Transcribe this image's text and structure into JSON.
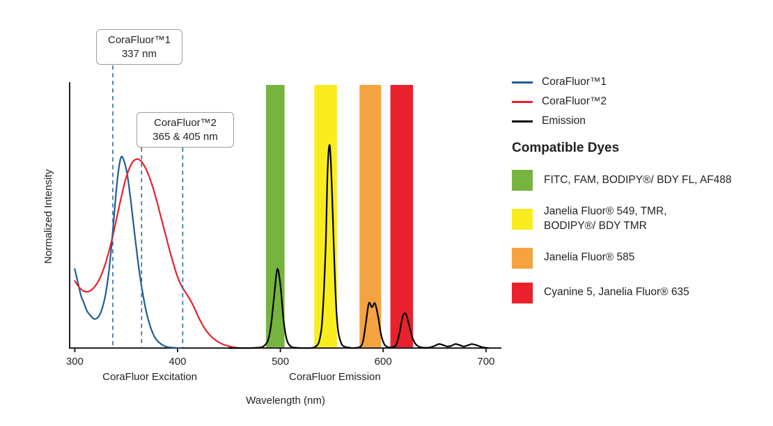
{
  "chart_data": {
    "type": "line",
    "title": "",
    "xlabel": "Wavelength (nm)",
    "ylabel": "Normalized Intensity",
    "xlim": [
      295,
      715
    ],
    "ylim": [
      0,
      1
    ],
    "x_ticks": [
      300,
      400,
      500,
      600,
      700
    ],
    "grid": false,
    "legend_position": "right",
    "axis_color": "#231f20",
    "dash_color": "#2f6ba0",
    "axis_group_labels": [
      {
        "label": "CoraFluor Excitation",
        "center_nm": 373
      },
      {
        "label": "CoraFluor Emission",
        "center_nm": 553
      }
    ],
    "dashed_markers": [
      {
        "nm": 337,
        "series": "CoraFluor™1"
      },
      {
        "nm": 365,
        "series": "CoraFluor™2"
      },
      {
        "nm": 405,
        "series": "CoraFluor™2"
      }
    ],
    "bands": [
      {
        "name": "green-filter",
        "color": "#77b43f",
        "from_nm": 486,
        "to_nm": 504
      },
      {
        "name": "yellow-filter",
        "color": "#f9ed1f",
        "from_nm": 533,
        "to_nm": 555
      },
      {
        "name": "orange-filter",
        "color": "#f5a341",
        "from_nm": 577,
        "to_nm": 598
      },
      {
        "name": "red-filter",
        "color": "#e8212c",
        "from_nm": 607,
        "to_nm": 629
      }
    ],
    "series": [
      {
        "name": "CoraFluor™1",
        "color": "#215a94",
        "points": [
          [
            300,
            0.3
          ],
          [
            303,
            0.25
          ],
          [
            306,
            0.2
          ],
          [
            309,
            0.17
          ],
          [
            312,
            0.14
          ],
          [
            315,
            0.125
          ],
          [
            318,
            0.112
          ],
          [
            321,
            0.112
          ],
          [
            324,
            0.125
          ],
          [
            327,
            0.155
          ],
          [
            330,
            0.205
          ],
          [
            333,
            0.285
          ],
          [
            336,
            0.4
          ],
          [
            339,
            0.54
          ],
          [
            342,
            0.66
          ],
          [
            345,
            0.725
          ],
          [
            348,
            0.71
          ],
          [
            351,
            0.66
          ],
          [
            354,
            0.575
          ],
          [
            357,
            0.475
          ],
          [
            360,
            0.375
          ],
          [
            363,
            0.285
          ],
          [
            366,
            0.21
          ],
          [
            369,
            0.148
          ],
          [
            372,
            0.1
          ],
          [
            375,
            0.065
          ],
          [
            378,
            0.04
          ],
          [
            381,
            0.025
          ],
          [
            384,
            0.015
          ],
          [
            387,
            0.008
          ],
          [
            390,
            0.004
          ],
          [
            394,
            0.002
          ],
          [
            398,
            0.001
          ],
          [
            402,
            0
          ]
        ]
      },
      {
        "name": "CoraFluor™2",
        "color": "#e8212c",
        "points": [
          [
            300,
            0.255
          ],
          [
            304,
            0.232
          ],
          [
            308,
            0.218
          ],
          [
            312,
            0.214
          ],
          [
            316,
            0.22
          ],
          [
            320,
            0.236
          ],
          [
            324,
            0.262
          ],
          [
            328,
            0.3
          ],
          [
            332,
            0.35
          ],
          [
            336,
            0.41
          ],
          [
            340,
            0.48
          ],
          [
            344,
            0.552
          ],
          [
            348,
            0.62
          ],
          [
            352,
            0.672
          ],
          [
            356,
            0.705
          ],
          [
            360,
            0.718
          ],
          [
            364,
            0.712
          ],
          [
            368,
            0.69
          ],
          [
            372,
            0.655
          ],
          [
            376,
            0.61
          ],
          [
            380,
            0.555
          ],
          [
            384,
            0.495
          ],
          [
            388,
            0.435
          ],
          [
            392,
            0.375
          ],
          [
            396,
            0.32
          ],
          [
            400,
            0.27
          ],
          [
            404,
            0.235
          ],
          [
            408,
            0.21
          ],
          [
            412,
            0.185
          ],
          [
            416,
            0.155
          ],
          [
            420,
            0.12
          ],
          [
            424,
            0.09
          ],
          [
            428,
            0.065
          ],
          [
            432,
            0.047
          ],
          [
            436,
            0.033
          ],
          [
            440,
            0.022
          ],
          [
            445,
            0.013
          ],
          [
            450,
            0.007
          ],
          [
            455,
            0.003
          ],
          [
            460,
            0
          ]
        ]
      },
      {
        "name": "Emission",
        "color": "#000000",
        "points": [
          [
            450,
            0
          ],
          [
            460,
            0
          ],
          [
            470,
            0
          ],
          [
            480,
            0.002
          ],
          [
            484,
            0.008
          ],
          [
            488,
            0.03
          ],
          [
            491,
            0.09
          ],
          [
            494,
            0.2
          ],
          [
            497,
            0.3
          ],
          [
            500,
            0.24
          ],
          [
            503,
            0.11
          ],
          [
            506,
            0.035
          ],
          [
            509,
            0.01
          ],
          [
            512,
            0.003
          ],
          [
            516,
            0.001
          ],
          [
            520,
            0
          ],
          [
            528,
            0
          ],
          [
            534,
            0.005
          ],
          [
            538,
            0.03
          ],
          [
            541,
            0.12
          ],
          [
            544,
            0.38
          ],
          [
            546,
            0.68
          ],
          [
            548,
            0.77
          ],
          [
            550,
            0.62
          ],
          [
            552,
            0.38
          ],
          [
            554,
            0.18
          ],
          [
            556,
            0.07
          ],
          [
            559,
            0.02
          ],
          [
            562,
            0.006
          ],
          [
            566,
            0.002
          ],
          [
            570,
            0
          ],
          [
            576,
            0.002
          ],
          [
            580,
            0.02
          ],
          [
            583,
            0.09
          ],
          [
            586,
            0.17
          ],
          [
            589,
            0.155
          ],
          [
            592,
            0.17
          ],
          [
            595,
            0.12
          ],
          [
            598,
            0.05
          ],
          [
            601,
            0.015
          ],
          [
            604,
            0.004
          ],
          [
            607,
            0.002
          ],
          [
            610,
            0.004
          ],
          [
            613,
            0.015
          ],
          [
            616,
            0.06
          ],
          [
            619,
            0.12
          ],
          [
            622,
            0.13
          ],
          [
            625,
            0.09
          ],
          [
            628,
            0.045
          ],
          [
            631,
            0.018
          ],
          [
            634,
            0.007
          ],
          [
            638,
            0.002
          ],
          [
            642,
            0.001
          ],
          [
            646,
            0.003
          ],
          [
            650,
            0.008
          ],
          [
            654,
            0.015
          ],
          [
            658,
            0.012
          ],
          [
            662,
            0.006
          ],
          [
            666,
            0.008
          ],
          [
            670,
            0.015
          ],
          [
            674,
            0.012
          ],
          [
            678,
            0.006
          ],
          [
            682,
            0.01
          ],
          [
            686,
            0.015
          ],
          [
            690,
            0.012
          ],
          [
            694,
            0.006
          ],
          [
            698,
            0.002
          ],
          [
            702,
            0
          ]
        ]
      }
    ]
  },
  "callouts": [
    {
      "line1": "CoraFluor™1",
      "line2": "337 nm"
    },
    {
      "line1": "CoraFluor™2",
      "line2": "365 & 405 nm"
    }
  ],
  "legend": {
    "lines": [
      {
        "label": "CoraFluor™1",
        "color": "#215a94"
      },
      {
        "label": "CoraFluor™2",
        "color": "#e8212c"
      },
      {
        "label": "Emission",
        "color": "#000000"
      }
    ],
    "dyes_heading": "Compatible Dyes",
    "dyes": [
      {
        "color": "#77b43f",
        "label": "FITC, FAM, BODIPY®/ BDY FL, AF488"
      },
      {
        "color": "#f9ed1f",
        "label": "Janelia Fluor® 549, TMR,\nBODIPY®/ BDY TMR"
      },
      {
        "color": "#f5a341",
        "label": "Janelia Fluor® 585"
      },
      {
        "color": "#e8212c",
        "label": "Cyanine 5, Janelia Fluor® 635"
      }
    ]
  }
}
